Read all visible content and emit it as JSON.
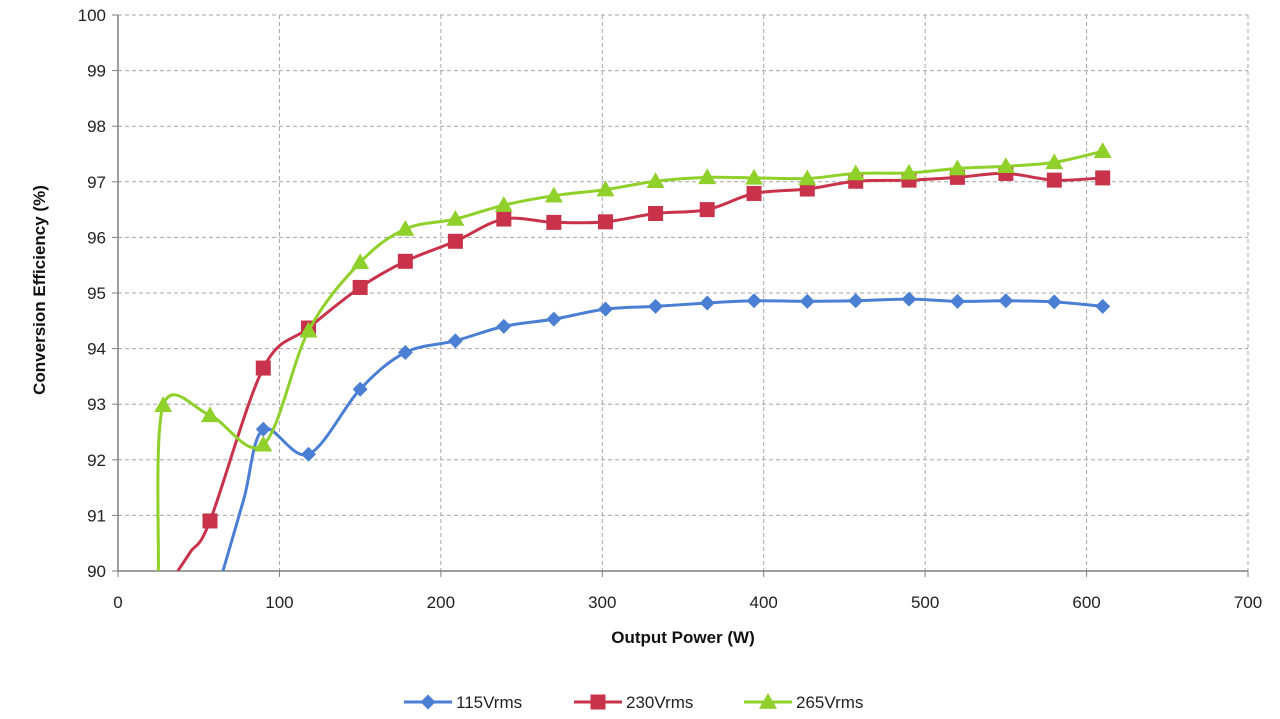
{
  "chart_data": {
    "type": "line",
    "xlabel": "Output Power (W)",
    "ylabel": "Conversion Efficiency (%)",
    "xlim": [
      0,
      700
    ],
    "ylim": [
      90,
      100
    ],
    "xticks": [
      "0",
      "100",
      "200",
      "300",
      "400",
      "500",
      "600",
      "700"
    ],
    "yticks": [
      "90",
      "91",
      "92",
      "93",
      "94",
      "95",
      "96",
      "97",
      "98",
      "99",
      "100"
    ],
    "grid": true,
    "legend_position": "bottom",
    "series": [
      {
        "name": "115Vrms",
        "color": "#4a7fd4",
        "marker": "diamond",
        "points": [
          [
            90,
            92.55
          ],
          [
            118,
            92.1
          ],
          [
            150,
            93.27
          ],
          [
            178,
            93.93
          ],
          [
            209,
            94.14
          ],
          [
            239,
            94.4
          ],
          [
            270,
            94.53
          ],
          [
            302,
            94.71
          ],
          [
            333,
            94.76
          ],
          [
            365,
            94.82
          ],
          [
            394,
            94.86
          ],
          [
            427,
            94.85
          ],
          [
            457,
            94.86
          ],
          [
            490,
            94.89
          ],
          [
            520,
            94.85
          ],
          [
            550,
            94.86
          ],
          [
            580,
            94.84
          ],
          [
            610,
            94.76
          ]
        ],
        "curve_start": [
          [
            65,
            90.0
          ],
          [
            78,
            91.3
          ]
        ]
      },
      {
        "name": "230Vrms",
        "color": "#c8324a",
        "marker": "square",
        "points": [
          [
            57,
            90.9
          ],
          [
            90,
            93.65
          ],
          [
            118,
            94.37
          ],
          [
            150,
            95.1
          ],
          [
            178,
            95.57
          ],
          [
            209,
            95.93
          ],
          [
            239,
            96.33
          ],
          [
            270,
            96.27
          ],
          [
            302,
            96.28
          ],
          [
            333,
            96.43
          ],
          [
            365,
            96.5
          ],
          [
            394,
            96.79
          ],
          [
            427,
            96.87
          ],
          [
            457,
            97.01
          ],
          [
            490,
            97.03
          ],
          [
            520,
            97.08
          ],
          [
            550,
            97.15
          ],
          [
            580,
            97.03
          ],
          [
            610,
            97.07
          ]
        ],
        "curve_start": [
          [
            37,
            90.0
          ],
          [
            45,
            90.35
          ]
        ]
      },
      {
        "name": "265Vrms",
        "color": "#8fd02a",
        "marker": "triangle",
        "points": [
          [
            28,
            92.98
          ],
          [
            57,
            92.8
          ],
          [
            90,
            92.27
          ],
          [
            118,
            94.32
          ],
          [
            150,
            95.55
          ],
          [
            178,
            96.15
          ],
          [
            209,
            96.33
          ],
          [
            239,
            96.58
          ],
          [
            270,
            96.75
          ],
          [
            302,
            96.86
          ],
          [
            333,
            97.01
          ],
          [
            365,
            97.08
          ],
          [
            394,
            97.07
          ],
          [
            427,
            97.06
          ],
          [
            457,
            97.15
          ],
          [
            490,
            97.16
          ],
          [
            520,
            97.24
          ],
          [
            550,
            97.28
          ],
          [
            580,
            97.35
          ],
          [
            610,
            97.55
          ]
        ],
        "curve_start": [
          [
            25,
            90.0
          ]
        ]
      }
    ]
  }
}
